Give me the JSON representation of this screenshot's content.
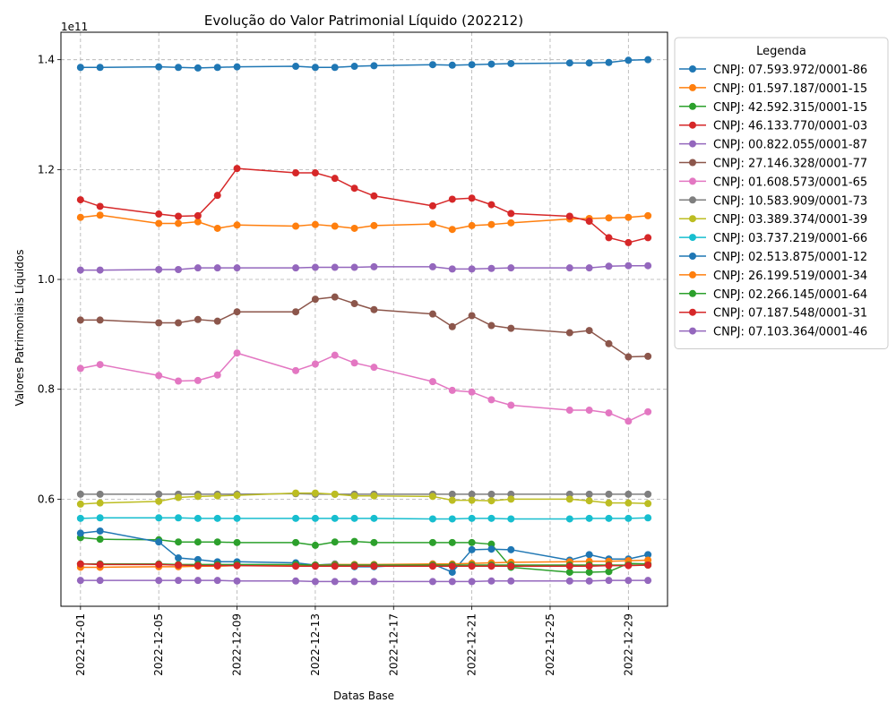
{
  "chart_data": {
    "type": "line",
    "title": "Evolução do Valor Patrimonial Líquido (202212)",
    "xlabel": "Datas Base",
    "ylabel": "Valores Patrimoniais Líquidos",
    "y_offset_label": "1e11",
    "y_scale_multiplier": 100000000000.0,
    "xlim": [
      "2022-11-30",
      "2022-12-31"
    ],
    "ylim": [
      0.405,
      1.45
    ],
    "x_ticks": [
      "2022-12-01",
      "2022-12-05",
      "2022-12-09",
      "2022-12-13",
      "2022-12-17",
      "2022-12-21",
      "2022-12-25",
      "2022-12-29"
    ],
    "y_ticks": [
      "0.6",
      "0.8",
      "1.0",
      "1.2",
      "1.4"
    ],
    "grid": true,
    "legend_title": "Legenda",
    "legend_position": "outside-right",
    "x": [
      "2022-12-01",
      "2022-12-02",
      "2022-12-05",
      "2022-12-06",
      "2022-12-07",
      "2022-12-08",
      "2022-12-09",
      "2022-12-12",
      "2022-12-13",
      "2022-12-14",
      "2022-12-15",
      "2022-12-16",
      "2022-12-19",
      "2022-12-20",
      "2022-12-21",
      "2022-12-22",
      "2022-12-23",
      "2022-12-26",
      "2022-12-27",
      "2022-12-28",
      "2022-12-29",
      "2022-12-30"
    ],
    "series": [
      {
        "name": "CNPJ: 07.593.972/0001-86",
        "color": "#1f77b4",
        "values": [
          1.386,
          1.386,
          1.387,
          1.386,
          1.385,
          1.386,
          1.387,
          1.388,
          1.386,
          1.386,
          1.388,
          1.389,
          1.391,
          1.39,
          1.391,
          1.392,
          1.393,
          1.394,
          1.394,
          1.395,
          1.399,
          1.4
        ]
      },
      {
        "name": "CNPJ: 01.597.187/0001-15",
        "color": "#ff7f0e",
        "values": [
          1.113,
          1.117,
          1.102,
          1.102,
          1.105,
          1.093,
          1.099,
          1.097,
          1.1,
          1.097,
          1.093,
          1.098,
          1.101,
          1.091,
          1.098,
          1.1,
          1.103,
          1.11,
          1.111,
          1.112,
          1.113,
          1.116
        ]
      },
      {
        "name": "CNPJ: 42.592.315/0001-15",
        "color": "#2ca02c",
        "values": [
          0.53,
          0.527,
          0.526,
          0.522,
          0.522,
          0.522,
          0.521,
          0.521,
          0.516,
          0.522,
          0.523,
          0.521,
          0.521,
          0.521,
          0.521,
          0.518,
          0.476,
          0.467,
          0.467,
          0.468,
          0.483,
          0.482
        ]
      },
      {
        "name": "CNPJ: 46.133.770/0001-03",
        "color": "#d62728",
        "values": [
          1.145,
          1.133,
          1.119,
          1.115,
          1.116,
          1.153,
          1.202,
          1.194,
          1.194,
          1.184,
          1.166,
          1.152,
          1.134,
          1.146,
          1.148,
          1.136,
          1.12,
          1.115,
          1.106,
          1.076,
          1.067,
          1.076
        ]
      },
      {
        "name": "CNPJ: 00.822.055/0001-87",
        "color": "#9467bd",
        "values": [
          1.017,
          1.017,
          1.018,
          1.018,
          1.021,
          1.021,
          1.021,
          1.021,
          1.022,
          1.022,
          1.022,
          1.023,
          1.023,
          1.019,
          1.019,
          1.02,
          1.021,
          1.021,
          1.021,
          1.024,
          1.025,
          1.025
        ]
      },
      {
        "name": "CNPJ: 27.146.328/0001-77",
        "color": "#8c564b",
        "values": [
          0.926,
          0.926,
          0.921,
          0.921,
          0.927,
          0.924,
          0.941,
          0.941,
          0.964,
          0.968,
          0.956,
          0.945,
          0.937,
          0.914,
          0.934,
          0.916,
          0.911,
          0.903,
          0.907,
          0.883,
          0.859,
          0.86
        ]
      },
      {
        "name": "CNPJ: 01.608.573/0001-65",
        "color": "#e377c2",
        "values": [
          0.838,
          0.845,
          0.825,
          0.815,
          0.816,
          0.826,
          0.866,
          0.834,
          0.846,
          0.862,
          0.848,
          0.84,
          0.814,
          0.798,
          0.795,
          0.781,
          0.771,
          0.762,
          0.762,
          0.757,
          0.742,
          0.759
        ]
      },
      {
        "name": "CNPJ: 10.583.909/0001-73",
        "color": "#7f7f7f",
        "values": [
          0.609,
          0.609,
          0.609,
          0.609,
          0.609,
          0.609,
          0.609,
          0.61,
          0.609,
          0.609,
          0.609,
          0.609,
          0.609,
          0.609,
          0.609,
          0.609,
          0.609,
          0.609,
          0.609,
          0.609,
          0.609,
          0.609
        ]
      },
      {
        "name": "CNPJ: 03.389.374/0001-39",
        "color": "#bcbd22",
        "values": [
          0.591,
          0.593,
          0.596,
          0.603,
          0.605,
          0.606,
          0.607,
          0.611,
          0.611,
          0.609,
          0.606,
          0.606,
          0.605,
          0.598,
          0.598,
          0.597,
          0.6,
          0.6,
          0.597,
          0.593,
          0.593,
          0.592
        ]
      },
      {
        "name": "CNPJ: 03.737.219/0001-66",
        "color": "#17becf",
        "values": [
          0.565,
          0.566,
          0.566,
          0.566,
          0.565,
          0.565,
          0.565,
          0.565,
          0.565,
          0.565,
          0.565,
          0.565,
          0.564,
          0.564,
          0.565,
          0.565,
          0.564,
          0.564,
          0.565,
          0.565,
          0.565,
          0.566
        ]
      },
      {
        "name": "CNPJ: 02.513.875/0001-12",
        "color": "#1f77b4",
        "values": [
          0.538,
          0.542,
          0.522,
          0.493,
          0.49,
          0.486,
          0.486,
          0.484,
          0.48,
          0.482,
          0.477,
          0.477,
          0.482,
          0.467,
          0.508,
          0.509,
          0.508,
          0.489,
          0.499,
          0.491,
          0.491,
          0.499
        ]
      },
      {
        "name": "CNPJ: 26.199.519/0001-34",
        "color": "#ff7f0e",
        "values": [
          0.476,
          0.476,
          0.477,
          0.477,
          0.478,
          0.478,
          0.479,
          0.48,
          0.48,
          0.481,
          0.481,
          0.481,
          0.482,
          0.482,
          0.483,
          0.484,
          0.485,
          0.486,
          0.487,
          0.487,
          0.488,
          0.489
        ]
      },
      {
        "name": "CNPJ: 02.266.145/0001-64",
        "color": "#2ca02c",
        "values": [
          0.482,
          0.482,
          0.482,
          0.481,
          0.481,
          0.481,
          0.481,
          0.481,
          0.48,
          0.48,
          0.48,
          0.48,
          0.48,
          0.48,
          0.48,
          0.48,
          0.48,
          0.48,
          0.48,
          0.48,
          0.48,
          0.48
        ]
      },
      {
        "name": "CNPJ: 07.187.548/0001-31",
        "color": "#d62728",
        "values": [
          0.482,
          0.481,
          0.481,
          0.48,
          0.479,
          0.479,
          0.479,
          0.478,
          0.478,
          0.478,
          0.478,
          0.478,
          0.478,
          0.478,
          0.478,
          0.478,
          0.478,
          0.478,
          0.478,
          0.479,
          0.479,
          0.48
        ]
      },
      {
        "name": "CNPJ: 07.103.364/0001-46",
        "color": "#9467bd",
        "values": [
          0.452,
          0.452,
          0.452,
          0.452,
          0.452,
          0.452,
          0.451,
          0.451,
          0.45,
          0.45,
          0.45,
          0.45,
          0.45,
          0.45,
          0.45,
          0.451,
          0.451,
          0.451,
          0.451,
          0.452,
          0.452,
          0.452
        ]
      }
    ]
  }
}
